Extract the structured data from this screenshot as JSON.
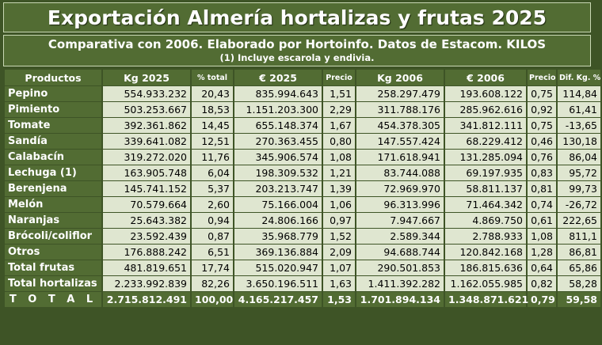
{
  "title": "Exportación Almería hortalizas y frutas 2025",
  "subtitle": "Comparativa con 2006. Elaborado por Hortoinfo. Datos de Estacom. KILOS",
  "note": "(1) Incluye escarola y endivia.",
  "columns": [
    "Productos",
    "Kg 2025",
    "% total",
    "€ 2025",
    "Precio",
    "Kg 2006",
    "€ 2006",
    "Precio",
    "Dif. Kg. %"
  ],
  "rows": [
    [
      "Pepino",
      "554.933.232",
      "20,43",
      "835.994.643",
      "1,51",
      "258.297.479",
      "193.608.122",
      "0,75",
      "114,84"
    ],
    [
      "Pimiento",
      "503.253.667",
      "18,53",
      "1.151.203.300",
      "2,29",
      "311.788.176",
      "285.962.616",
      "0,92",
      "61,41"
    ],
    [
      "Tomate",
      "392.361.862",
      "14,45",
      "655.148.374",
      "1,67",
      "454.378.305",
      "341.812.111",
      "0,75",
      "-13,65"
    ],
    [
      "Sandía",
      "339.641.082",
      "12,51",
      "270.363.455",
      "0,80",
      "147.557.424",
      "68.229.412",
      "0,46",
      "130,18"
    ],
    [
      "Calabacín",
      "319.272.020",
      "11,76",
      "345.906.574",
      "1,08",
      "171.618.941",
      "131.285.094",
      "0,76",
      "86,04"
    ],
    [
      "Lechuga (1)",
      "163.905.748",
      "6,04",
      "198.309.532",
      "1,21",
      "83.744.088",
      "69.197.935",
      "0,83",
      "95,72"
    ],
    [
      "Berenjena",
      "145.741.152",
      "5,37",
      "203.213.747",
      "1,39",
      "72.969.970",
      "58.811.137",
      "0,81",
      "99,73"
    ],
    [
      "Melón",
      "70.579.664",
      "2,60",
      "75.166.004",
      "1,06",
      "96.313.996",
      "71.464.342",
      "0,74",
      "-26,72"
    ],
    [
      "Naranjas",
      "25.643.382",
      "0,94",
      "24.806.166",
      "0,97",
      "7.947.667",
      "4.869.750",
      "0,61",
      "222,65"
    ],
    [
      "Brócoli/coliflor",
      "23.592.439",
      "0,87",
      "35.968.779",
      "1,52",
      "2.589.344",
      "2.788.933",
      "1,08",
      "811,1"
    ],
    [
      "Otros",
      "176.888.242",
      "6,51",
      "369.136.884",
      "2,09",
      "94.688.744",
      "120.842.168",
      "1,28",
      "86,81"
    ],
    [
      "Total frutas",
      "481.819.651",
      "17,74",
      "515.020.947",
      "1,07",
      "290.501.853",
      "186.815.636",
      "0,64",
      "65,86"
    ],
    [
      "Total hortalizas",
      "2.233.992.839",
      "82,26",
      "3.650.196.511",
      "1,63",
      "1.411.392.282",
      "1.162.055.985",
      "0,82",
      "58,28"
    ]
  ],
  "total_row": [
    "T O T A L",
    "2.715.812.491",
    "100,00",
    "4.165.217.457",
    "1,53",
    "1.701.894.134",
    "1.348.871.621",
    "0,79",
    "59,58"
  ]
}
